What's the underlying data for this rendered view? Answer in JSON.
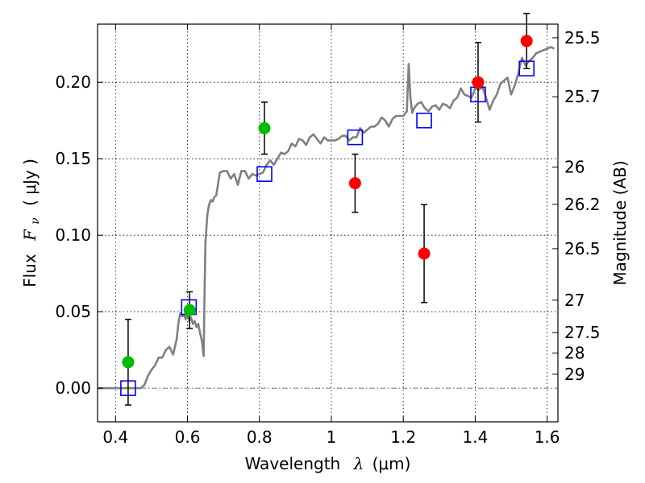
{
  "chart_data": {
    "type": "scatter",
    "xlabel_text": "Wavelength",
    "xlabel_math": "λ",
    "xlabel_unit": "(μm)",
    "ylabel_text": "Flux",
    "ylabel_math": "F",
    "ylabel_math_sub": "ν",
    "ylabel_unit": "( μJy )",
    "y2label": "Magnitude (AB)",
    "xlim": [
      0.35,
      1.63
    ],
    "ylim": [
      -0.022,
      0.238
    ],
    "grid": true,
    "x_ticks": [
      {
        "value": 0.4,
        "label": "0.4"
      },
      {
        "value": 0.6,
        "label": "0.6"
      },
      {
        "value": 0.8,
        "label": "0.8"
      },
      {
        "value": 1.0,
        "label": "1"
      },
      {
        "value": 1.2,
        "label": "1.2"
      },
      {
        "value": 1.4,
        "label": "1.4"
      },
      {
        "value": 1.6,
        "label": "1.6"
      }
    ],
    "y_ticks": [
      {
        "value": 0.0,
        "label": "0.00"
      },
      {
        "value": 0.05,
        "label": "0.05"
      },
      {
        "value": 0.1,
        "label": "0.10"
      },
      {
        "value": 0.15,
        "label": "0.15"
      },
      {
        "value": 0.2,
        "label": "0.20"
      }
    ],
    "y2_ticks": [
      {
        "value": 25.5,
        "label": "25.5"
      },
      {
        "value": 25.7,
        "label": "25.7"
      },
      {
        "value": 26.0,
        "label": "26"
      },
      {
        "value": 26.2,
        "label": "26.2"
      },
      {
        "value": 26.5,
        "label": "26.5"
      },
      {
        "value": 27.0,
        "label": "27"
      },
      {
        "value": 27.5,
        "label": "27.5"
      },
      {
        "value": 28.0,
        "label": "28"
      },
      {
        "value": 29.0,
        "label": "29"
      }
    ],
    "colors": {
      "model_spectrum": "#808080",
      "green_points": "#00bb00",
      "red_points": "#ff0000",
      "model_photometry": "#0000ff",
      "zero_line": "#808080"
    },
    "model_spectrum": {
      "x": [
        0.35,
        0.47,
        0.48,
        0.49,
        0.5,
        0.51,
        0.52,
        0.53,
        0.54,
        0.55,
        0.56,
        0.57,
        0.575,
        0.58,
        0.585,
        0.59,
        0.595,
        0.6,
        0.605,
        0.61,
        0.615,
        0.62,
        0.625,
        0.63,
        0.635,
        0.64,
        0.645,
        0.647,
        0.65,
        0.655,
        0.66,
        0.665,
        0.67,
        0.675,
        0.68,
        0.69,
        0.7,
        0.71,
        0.72,
        0.73,
        0.74,
        0.75,
        0.76,
        0.77,
        0.78,
        0.79,
        0.8,
        0.81,
        0.82,
        0.83,
        0.84,
        0.85,
        0.86,
        0.87,
        0.88,
        0.89,
        0.9,
        0.91,
        0.92,
        0.93,
        0.94,
        0.95,
        0.96,
        0.97,
        0.98,
        0.99,
        1.0,
        1.01,
        1.02,
        1.03,
        1.04,
        1.05,
        1.06,
        1.07,
        1.08,
        1.09,
        1.1,
        1.11,
        1.12,
        1.13,
        1.14,
        1.15,
        1.16,
        1.17,
        1.18,
        1.19,
        1.2,
        1.21,
        1.215,
        1.22,
        1.225,
        1.23,
        1.24,
        1.25,
        1.26,
        1.27,
        1.28,
        1.29,
        1.3,
        1.31,
        1.32,
        1.33,
        1.34,
        1.35,
        1.36,
        1.37,
        1.38,
        1.39,
        1.4,
        1.41,
        1.42,
        1.43,
        1.44,
        1.45,
        1.46,
        1.47,
        1.48,
        1.49,
        1.5,
        1.51,
        1.52,
        1.53,
        1.54,
        1.55,
        1.56,
        1.57,
        1.58,
        1.59,
        1.6,
        1.61,
        1.62
      ],
      "y": [
        0.0,
        0.0,
        0.002,
        0.008,
        0.012,
        0.015,
        0.02,
        0.02,
        0.025,
        0.027,
        0.022,
        0.032,
        0.043,
        0.049,
        0.047,
        0.048,
        0.045,
        0.049,
        0.044,
        0.046,
        0.042,
        0.044,
        0.04,
        0.042,
        0.036,
        0.031,
        0.021,
        0.055,
        0.095,
        0.113,
        0.12,
        0.123,
        0.122,
        0.125,
        0.126,
        0.141,
        0.142,
        0.142,
        0.137,
        0.14,
        0.133,
        0.142,
        0.142,
        0.137,
        0.14,
        0.139,
        0.14,
        0.141,
        0.146,
        0.149,
        0.146,
        0.15,
        0.154,
        0.153,
        0.155,
        0.16,
        0.158,
        0.163,
        0.162,
        0.159,
        0.164,
        0.166,
        0.163,
        0.16,
        0.164,
        0.162,
        0.162,
        0.162,
        0.163,
        0.165,
        0.165,
        0.162,
        0.164,
        0.164,
        0.17,
        0.167,
        0.169,
        0.171,
        0.171,
        0.173,
        0.177,
        0.175,
        0.171,
        0.176,
        0.178,
        0.178,
        0.178,
        0.181,
        0.212,
        0.19,
        0.18,
        0.183,
        0.186,
        0.187,
        0.183,
        0.181,
        0.184,
        0.185,
        0.182,
        0.186,
        0.185,
        0.183,
        0.188,
        0.19,
        0.196,
        0.192,
        0.191,
        0.19,
        0.196,
        0.195,
        0.197,
        0.19,
        0.182,
        0.188,
        0.192,
        0.199,
        0.201,
        0.203,
        0.192,
        0.198,
        0.206,
        0.216,
        0.211,
        0.214,
        0.216,
        0.219,
        0.22,
        0.221,
        0.222,
        0.223,
        0.222
      ]
    },
    "observed_points": [
      {
        "x": 0.435,
        "y": 0.017,
        "err": 0.028,
        "color": "green"
      },
      {
        "x": 0.606,
        "y": 0.051,
        "err": 0.012,
        "color": "green"
      },
      {
        "x": 0.814,
        "y": 0.17,
        "err": 0.017,
        "color": "green"
      },
      {
        "x": 1.066,
        "y": 0.134,
        "err": 0.019,
        "color": "red"
      },
      {
        "x": 1.258,
        "y": 0.088,
        "err": 0.032,
        "color": "red"
      },
      {
        "x": 1.408,
        "y": 0.2,
        "err": 0.026,
        "color": "red"
      },
      {
        "x": 1.543,
        "y": 0.227,
        "err": 0.018,
        "color": "red"
      }
    ],
    "model_photometry": {
      "x": [
        0.435,
        0.604,
        0.814,
        1.066,
        1.258,
        1.408,
        1.543
      ],
      "y": [
        0.0,
        0.053,
        0.14,
        0.164,
        0.175,
        0.192,
        0.209
      ]
    }
  }
}
